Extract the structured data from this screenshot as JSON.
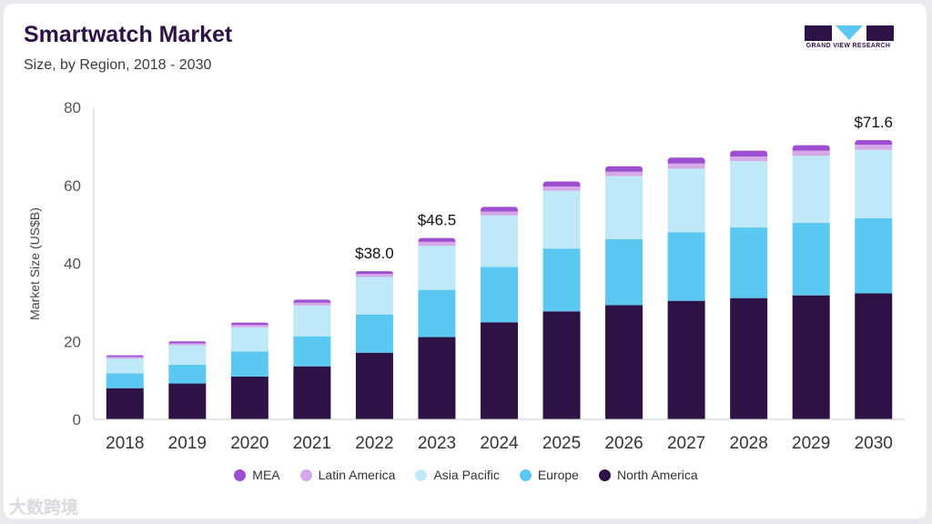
{
  "header": {
    "title": "Smartwatch Market",
    "subtitle": "Size, by Region, 2018 - 2030"
  },
  "logo": {
    "text": "GRAND VIEW RESEARCH",
    "icon": "grand-view-research-logo",
    "color": "#2d1245"
  },
  "watermark": {
    "text": "大数跨境"
  },
  "chart_data": {
    "type": "bar",
    "stacked": true,
    "title": "Smartwatch Market",
    "subtitle": "Size, by Region, 2018 - 2030",
    "xlabel": "",
    "ylabel": "Market Size (US$B)",
    "ylim": [
      0,
      80
    ],
    "yticks": [
      0,
      20,
      40,
      60,
      80
    ],
    "grid": false,
    "legend_position": "bottom",
    "categories": [
      "2018",
      "2019",
      "2020",
      "2021",
      "2022",
      "2023",
      "2024",
      "2025",
      "2026",
      "2027",
      "2028",
      "2029",
      "2030"
    ],
    "series": [
      {
        "name": "North America",
        "color": "#2d1245",
        "values": [
          8.0,
          9.2,
          11.0,
          13.6,
          17.1,
          21.1,
          24.9,
          27.7,
          29.3,
          30.4,
          31.1,
          31.8,
          32.3
        ]
      },
      {
        "name": "Europe",
        "color": "#5bc8f2",
        "values": [
          3.8,
          4.8,
          6.4,
          7.7,
          9.8,
          12.1,
          14.2,
          16.1,
          16.9,
          17.6,
          18.1,
          18.6,
          19.3
        ]
      },
      {
        "name": "Asia Pacific",
        "color": "#bfe8f9",
        "values": [
          3.8,
          5.0,
          6.2,
          7.9,
          9.6,
          11.3,
          13.2,
          14.8,
          16.2,
          16.3,
          17.0,
          17.2,
          17.5
        ]
      },
      {
        "name": "Latin America",
        "color": "#d5a9e7",
        "values": [
          0.4,
          0.5,
          0.6,
          0.7,
          0.8,
          1.0,
          1.0,
          1.1,
          1.1,
          1.3,
          1.2,
          1.3,
          1.3
        ]
      },
      {
        "name": "MEA",
        "color": "#9d4fd0",
        "values": [
          0.4,
          0.5,
          0.6,
          0.8,
          0.7,
          1.0,
          1.2,
          1.3,
          1.4,
          1.5,
          1.5,
          1.4,
          1.2
        ]
      }
    ],
    "annotations": [
      {
        "category": "2022",
        "text": "$38.0"
      },
      {
        "category": "2023",
        "text": "$46.5"
      },
      {
        "category": "2030",
        "text": "$71.6"
      }
    ],
    "legend_order": [
      "MEA",
      "Latin America",
      "Asia Pacific",
      "Europe",
      "North America"
    ]
  }
}
